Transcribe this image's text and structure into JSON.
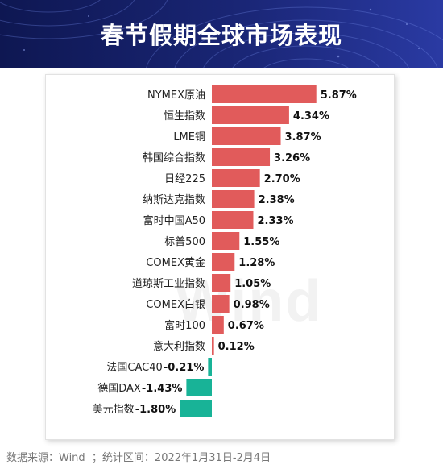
{
  "title": "春节假期全球市场表现",
  "watermark": "Wind",
  "footer": "数据来源：Wind  ；统计区间：2022年1月31日-2月4日",
  "colors": {
    "positive": "#e15b5b",
    "negative": "#18b397",
    "banner_dark": "#10195a",
    "banner_light": "#2c3fa8"
  },
  "chart_data": {
    "type": "bar",
    "orientation": "horizontal",
    "title": "春节假期全球市场表现",
    "unit": "%",
    "categories": [
      "NYMEX原油",
      "恒生指数",
      "LME铜",
      "韩国综合指数",
      "日经225",
      "纳斯达克指数",
      "富时中国A50",
      "标普500",
      "COMEX黄金",
      "道琼斯工业指数",
      "COMEX白银",
      "富时100",
      "意大利指数",
      "法国CAC40",
      "德国DAX",
      "美元指数"
    ],
    "values": [
      5.87,
      4.34,
      3.87,
      3.26,
      2.7,
      2.38,
      2.33,
      1.55,
      1.28,
      1.05,
      0.98,
      0.67,
      0.12,
      -0.21,
      -1.43,
      -1.8
    ],
    "labels": [
      "5.87%",
      "4.34%",
      "3.87%",
      "3.26%",
      "2.70%",
      "2.38%",
      "2.33%",
      "1.55%",
      "1.28%",
      "1.05%",
      "0.98%",
      "0.67%",
      "0.12%",
      "-0.21%",
      "-1.43%",
      "-1.80%"
    ]
  }
}
